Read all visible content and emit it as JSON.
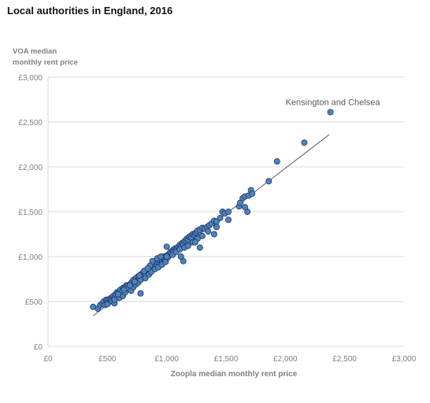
{
  "chart_data": {
    "type": "scatter",
    "title": "Local authorities in England, 2016",
    "ylabel_lines": [
      "VOA median",
      "monthly rent price"
    ],
    "xlabel": "Zoopla  median monthly rent price",
    "xlim": [
      0,
      3000
    ],
    "ylim": [
      0,
      3000
    ],
    "x_ticks": [
      0,
      500,
      1000,
      1500,
      2000,
      2500,
      3000
    ],
    "y_ticks": [
      0,
      500,
      1000,
      1500,
      2000,
      2500,
      3000
    ],
    "x_tick_labels": [
      "£0",
      "£500",
      "£1,000",
      "£1,500",
      "£2,000",
      "£2,500",
      "£3,000"
    ],
    "y_tick_labels": [
      "£0",
      "£500",
      "£1,000",
      "£1,500",
      "£2,000",
      "£2,500",
      "£3,000"
    ],
    "grid": "horizontal",
    "point_color": "#4f81bd",
    "point_edge_color": "#1f3864",
    "trendline": {
      "x": [
        380,
        2370
      ],
      "y": [
        340,
        2360
      ],
      "color": "#595959"
    },
    "annotation": {
      "text": "Kensington and Chelsea",
      "x": 2380,
      "y": 2610
    },
    "x": [
      380,
      420,
      440,
      460,
      470,
      480,
      490,
      500,
      510,
      520,
      530,
      540,
      550,
      560,
      570,
      580,
      590,
      600,
      610,
      620,
      630,
      640,
      650,
      660,
      670,
      680,
      690,
      700,
      710,
      720,
      730,
      740,
      750,
      760,
      770,
      780,
      790,
      800,
      810,
      820,
      830,
      840,
      850,
      860,
      870,
      880,
      890,
      900,
      910,
      920,
      930,
      940,
      950,
      960,
      970,
      980,
      990,
      1000,
      1010,
      1020,
      1030,
      1040,
      1050,
      1060,
      1070,
      1080,
      1090,
      1100,
      1110,
      1120,
      1130,
      1140,
      1150,
      1160,
      1170,
      1180,
      1190,
      1200,
      1210,
      1220,
      1230,
      1240,
      1250,
      1260,
      1280,
      1300,
      1320,
      1340,
      1360,
      1380,
      1400,
      1420,
      1450,
      1470,
      1490,
      1520,
      1610,
      1640,
      1660,
      1690,
      1710,
      1860,
      1930,
      2160,
      2380,
      500,
      540,
      560,
      600,
      630,
      650,
      700,
      720,
      740,
      760,
      780,
      820,
      850,
      870,
      900,
      930,
      960,
      990,
      1000,
      1050,
      1080,
      1110,
      1150,
      1180,
      1220,
      1260,
      1300,
      1350,
      1420,
      1520,
      1620,
      1680,
      1720,
      560,
      590,
      640,
      690,
      730,
      770,
      810,
      860,
      880,
      920,
      950,
      1000,
      1140,
      1280,
      1400,
      1660,
      780,
      840,
      1120,
      1240
    ],
    "y": [
      440,
      420,
      460,
      480,
      500,
      460,
      520,
      510,
      490,
      530,
      520,
      550,
      560,
      540,
      580,
      600,
      590,
      610,
      630,
      600,
      650,
      640,
      660,
      680,
      670,
      650,
      690,
      700,
      720,
      740,
      700,
      760,
      730,
      780,
      750,
      800,
      770,
      820,
      790,
      810,
      850,
      830,
      870,
      840,
      880,
      900,
      860,
      920,
      890,
      940,
      960,
      910,
      980,
      930,
      1000,
      970,
      950,
      1010,
      990,
      1030,
      1050,
      1040,
      1070,
      1060,
      1090,
      1080,
      1100,
      1110,
      1130,
      1120,
      1150,
      1140,
      1170,
      1180,
      1200,
      1190,
      1220,
      1230,
      1210,
      1250,
      1240,
      1260,
      1270,
      1290,
      1300,
      1320,
      1310,
      1330,
      1350,
      1370,
      1400,
      1390,
      1430,
      1500,
      1480,
      1500,
      1560,
      1650,
      1670,
      1680,
      1740,
      1840,
      2060,
      2270,
      2610,
      470,
      500,
      480,
      540,
      560,
      600,
      620,
      660,
      690,
      710,
      740,
      760,
      800,
      830,
      860,
      880,
      910,
      940,
      1000,
      1020,
      1050,
      1080,
      1100,
      1120,
      1160,
      1200,
      1230,
      1280,
      1330,
      1410,
      1600,
      1500,
      1700,
      520,
      580,
      630,
      680,
      720,
      790,
      840,
      900,
      950,
      980,
      1000,
      1110,
      950,
      1100,
      1250,
      1550,
      590,
      870,
      1000,
      1160
    ]
  }
}
